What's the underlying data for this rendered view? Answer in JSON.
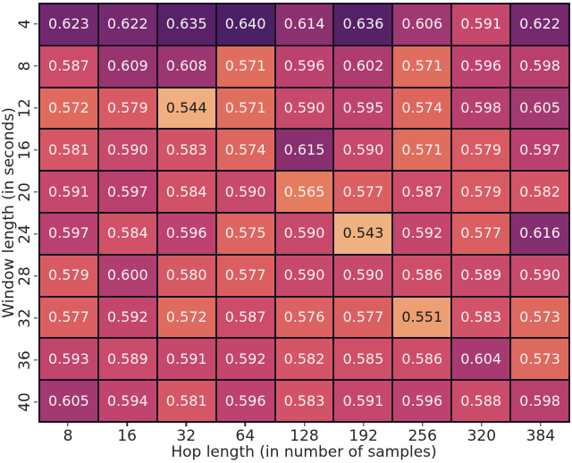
{
  "figure": {
    "background": "#ffffff",
    "text_color": "#262626"
  },
  "chart_data": {
    "type": "heatmap",
    "title": "",
    "xlabel": "Hop length (in number of samples)",
    "ylabel": "Window length (in seconds)",
    "x_tick_labels": [
      "8",
      "16",
      "32",
      "64",
      "128",
      "192",
      "256",
      "320",
      "384"
    ],
    "y_tick_labels": [
      "4",
      "8",
      "12",
      "16",
      "20",
      "24",
      "28",
      "32",
      "36",
      "40"
    ],
    "values": [
      [
        0.623,
        0.622,
        0.635,
        0.64,
        0.614,
        0.636,
        0.606,
        0.591,
        0.622
      ],
      [
        0.587,
        0.609,
        0.608,
        0.571,
        0.596,
        0.602,
        0.571,
        0.596,
        0.598
      ],
      [
        0.572,
        0.579,
        0.544,
        0.571,
        0.59,
        0.595,
        0.574,
        0.598,
        0.605
      ],
      [
        0.581,
        0.59,
        0.583,
        0.574,
        0.615,
        0.59,
        0.571,
        0.579,
        0.597
      ],
      [
        0.591,
        0.597,
        0.584,
        0.59,
        0.565,
        0.577,
        0.587,
        0.579,
        0.582
      ],
      [
        0.597,
        0.584,
        0.596,
        0.575,
        0.59,
        0.543,
        0.592,
        0.577,
        0.616
      ],
      [
        0.579,
        0.6,
        0.58,
        0.577,
        0.59,
        0.59,
        0.586,
        0.589,
        0.59
      ],
      [
        0.577,
        0.592,
        0.572,
        0.587,
        0.576,
        0.577,
        0.551,
        0.583,
        0.573
      ],
      [
        0.593,
        0.589,
        0.591,
        0.592,
        0.582,
        0.585,
        0.586,
        0.604,
        0.573
      ],
      [
        0.605,
        0.594,
        0.581,
        0.596,
        0.583,
        0.591,
        0.596,
        0.588,
        0.598
      ]
    ],
    "value_decimals": 3,
    "vmin": 0.543,
    "vmax": 0.64,
    "grid_on": true,
    "legend": "none",
    "colormap": {
      "name": "flare-like",
      "anchors": [
        [
          0.0,
          "#f0b182"
        ],
        [
          0.1,
          "#ec9b71"
        ],
        [
          0.25,
          "#e3775c"
        ],
        [
          0.35,
          "#db5f61"
        ],
        [
          0.45,
          "#cd4c6a"
        ],
        [
          0.55,
          "#bc426f"
        ],
        [
          0.65,
          "#a03871"
        ],
        [
          0.75,
          "#862f70"
        ],
        [
          0.85,
          "#6b266e"
        ],
        [
          1.0,
          "#4c2065"
        ]
      ],
      "dark_text_threshold": 0.15,
      "annotation_text_dark": "#1a1a1a",
      "annotation_text_light": "#f7f1f1",
      "grid_line_color": "#170e20"
    }
  }
}
